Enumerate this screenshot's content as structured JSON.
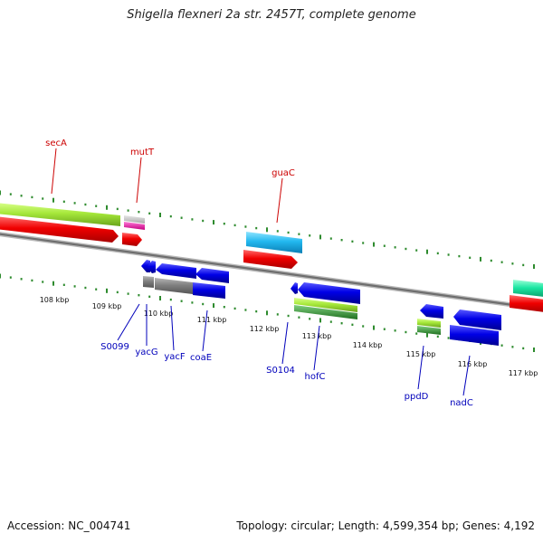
{
  "title": "Shigella flexneri 2a str. 2457T, complete genome",
  "footer": {
    "accession": "Accession: NC_004741",
    "summary": "Topology: circular; Length: 4,599,354 bp; Genes: 4,192"
  },
  "colors": {
    "top_strand_label": "#cc0000",
    "bottom_strand_label": "#0000bb",
    "backbone": "#808080",
    "tick": "#2e8b2e"
  },
  "kbp_ticks": [
    "108 kbp",
    "109 kbp",
    "110 kbp",
    "111 kbp",
    "112 kbp",
    "113 kbp",
    "114 kbp",
    "115 kbp",
    "116 kbp",
    "117 kbp"
  ],
  "top_labels": [
    "secA",
    "mutT",
    "guaC"
  ],
  "bottom_labels": [
    "S0099",
    "yacG",
    "yacF",
    "coaE",
    "S0104",
    "hofC",
    "ppdD",
    "nadC"
  ]
}
